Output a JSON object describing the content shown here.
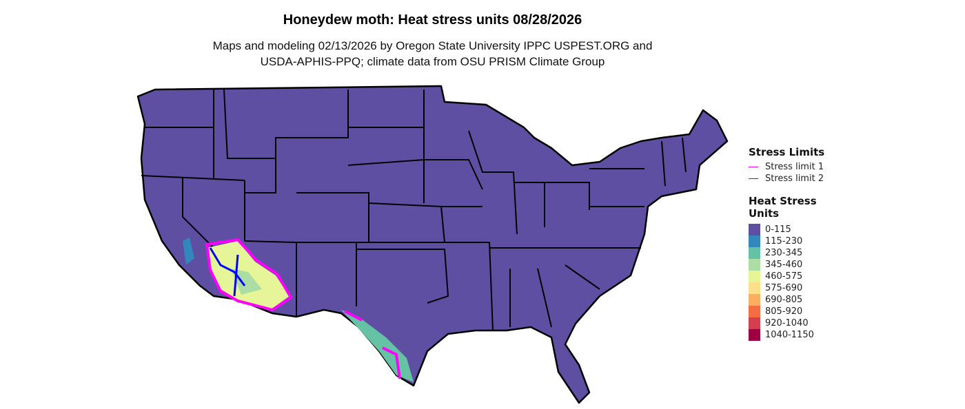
{
  "title": "Honeydew moth: Heat stress units 08/28/2026",
  "subtitle_line1": "Maps and modeling 02/13/2026 by Oregon State University IPPC USPEST.ORG and",
  "subtitle_line2": "USDA-APHIS-PPQ; climate data from OSU PRISM Climate Group",
  "legend_limits": {
    "title": "Stress Limits",
    "items": [
      {
        "label": "Stress limit 1",
        "color": "#FF00FF"
      },
      {
        "label": "Stress limit 2",
        "color": "#0000FF"
      }
    ]
  },
  "legend_units": {
    "title_line1": "Heat Stress",
    "title_line2": "Units",
    "items": [
      {
        "label": "0-115",
        "color": "#5E4FA2"
      },
      {
        "label": "115-230",
        "color": "#3288BD"
      },
      {
        "label": "230-345",
        "color": "#66C2A5"
      },
      {
        "label": "345-460",
        "color": "#ABDDA4"
      },
      {
        "label": "460-575",
        "color": "#E6F598"
      },
      {
        "label": "575-690",
        "color": "#FEE08B"
      },
      {
        "label": "690-805",
        "color": "#FDAE61"
      },
      {
        "label": "805-920",
        "color": "#F46D43"
      },
      {
        "label": "920-1040",
        "color": "#D53E4F"
      },
      {
        "label": "1040-1150",
        "color": "#9E0142"
      }
    ]
  }
}
